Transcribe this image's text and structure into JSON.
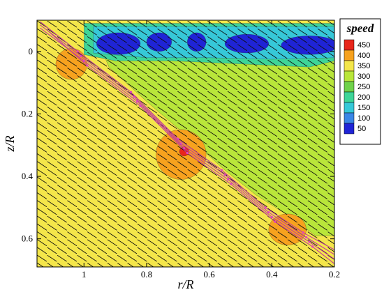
{
  "chart_data": {
    "type": "heatmap",
    "title": "",
    "xlabel": "r/R",
    "ylabel": "z/R",
    "xlim": [
      1.15,
      0.2
    ],
    "ylim": [
      0.69,
      -0.1
    ],
    "x_reversed": true,
    "y_reversed": true,
    "x_ticks": [
      1,
      0.8,
      0.6,
      0.4,
      0.2
    ],
    "x_tick_labels": [
      "1",
      "0.8",
      "0.6",
      "0.4",
      "0.2"
    ],
    "y_ticks": [
      0,
      0.2,
      0.4,
      0.6
    ],
    "y_tick_labels": [
      "0",
      "0.2",
      "0.4",
      "0.6"
    ],
    "legend": {
      "title": "speed",
      "placement": "right",
      "levels": [
        {
          "value": 450,
          "color": "#e8261b"
        },
        {
          "value": 400,
          "color": "#f7a21e"
        },
        {
          "value": 350,
          "color": "#f4e64a"
        },
        {
          "value": 300,
          "color": "#b9e63a"
        },
        {
          "value": 250,
          "color": "#6fd24a"
        },
        {
          "value": 200,
          "color": "#3ed598"
        },
        {
          "value": 150,
          "color": "#36c8d8"
        },
        {
          "value": 100,
          "color": "#3a86e6"
        },
        {
          "value": 50,
          "color": "#1f24d6"
        }
      ]
    },
    "background_level": 325,
    "features": [
      {
        "kind": "region",
        "speed": 300,
        "polygon": [
          [
            0.95,
            -0.07
          ],
          [
            0.2,
            -0.07
          ],
          [
            0.2,
            0.59
          ],
          [
            0.26,
            0.59
          ],
          [
            0.34,
            0.53
          ],
          [
            0.45,
            0.46
          ],
          [
            0.55,
            0.38
          ],
          [
            0.66,
            0.28
          ],
          [
            0.8,
            0.16
          ],
          [
            0.92,
            0.05
          ],
          [
            0.95,
            -0.02
          ]
        ]
      },
      {
        "kind": "region",
        "speed": 200,
        "polygon": [
          [
            1.0,
            -0.09
          ],
          [
            0.2,
            -0.09
          ],
          [
            0.2,
            0.03
          ],
          [
            0.28,
            0.05
          ],
          [
            0.5,
            0.04
          ],
          [
            0.72,
            0.03
          ],
          [
            0.9,
            0.03
          ],
          [
            1.0,
            0.01
          ]
        ]
      },
      {
        "kind": "region",
        "speed": 150,
        "polygon": [
          [
            0.97,
            -0.08
          ],
          [
            0.2,
            -0.08
          ],
          [
            0.2,
            0.02
          ],
          [
            0.4,
            0.025
          ],
          [
            0.6,
            0.02
          ],
          [
            0.8,
            0.02
          ],
          [
            0.97,
            0.005
          ]
        ]
      },
      {
        "kind": "blob",
        "speed": 50,
        "x": 0.89,
        "y": -0.025,
        "rx": 0.07,
        "ry": 0.035
      },
      {
        "kind": "blob",
        "speed": 50,
        "x": 0.76,
        "y": -0.03,
        "rx": 0.04,
        "ry": 0.03
      },
      {
        "kind": "blob",
        "speed": 50,
        "x": 0.64,
        "y": -0.03,
        "rx": 0.03,
        "ry": 0.03
      },
      {
        "kind": "blob",
        "speed": 50,
        "x": 0.48,
        "y": -0.025,
        "rx": 0.07,
        "ry": 0.03
      },
      {
        "kind": "blob",
        "speed": 50,
        "x": 0.28,
        "y": -0.02,
        "rx": 0.09,
        "ry": 0.03
      },
      {
        "kind": "blob",
        "speed": 400,
        "x": 0.69,
        "y": 0.33,
        "rx": 0.08,
        "ry": 0.08
      },
      {
        "kind": "blob",
        "speed": 400,
        "x": 0.35,
        "y": 0.57,
        "rx": 0.06,
        "ry": 0.05
      },
      {
        "kind": "blob",
        "speed": 400,
        "x": 1.04,
        "y": 0.04,
        "rx": 0.05,
        "ry": 0.05
      },
      {
        "kind": "blob",
        "speed": 450,
        "x": 0.68,
        "y": 0.32,
        "rx": 0.015,
        "ry": 0.015
      }
    ],
    "streamlines": [
      {
        "points": [
          [
            1.14,
            -0.095
          ],
          [
            1.02,
            0.0
          ],
          [
            0.85,
            0.13
          ],
          [
            0.7,
            0.28
          ],
          [
            0.56,
            0.38
          ],
          [
            0.42,
            0.5
          ],
          [
            0.3,
            0.58
          ],
          [
            0.2,
            0.635
          ]
        ]
      },
      {
        "points": [
          [
            1.14,
            -0.085
          ],
          [
            1.01,
            0.015
          ],
          [
            0.84,
            0.145
          ],
          [
            0.69,
            0.295
          ],
          [
            0.55,
            0.395
          ],
          [
            0.41,
            0.515
          ],
          [
            0.29,
            0.595
          ],
          [
            0.2,
            0.65
          ]
        ]
      },
      {
        "points": [
          [
            1.14,
            -0.075
          ],
          [
            1.0,
            0.03
          ],
          [
            0.83,
            0.16
          ],
          [
            0.68,
            0.31
          ],
          [
            0.54,
            0.41
          ],
          [
            0.4,
            0.53
          ],
          [
            0.28,
            0.61
          ],
          [
            0.2,
            0.665
          ]
        ]
      },
      {
        "points": [
          [
            1.12,
            -0.07
          ],
          [
            0.99,
            0.045
          ],
          [
            0.82,
            0.175
          ],
          [
            0.67,
            0.325
          ],
          [
            0.53,
            0.425
          ],
          [
            0.39,
            0.545
          ],
          [
            0.27,
            0.625
          ],
          [
            0.2,
            0.68
          ]
        ]
      }
    ],
    "vector_field": {
      "dx": 0.03,
      "dy": -0.02,
      "spacing_x": 0.032,
      "spacing_y": 0.025
    },
    "x": [
      1.15,
      0.2
    ],
    "y": [
      -0.1,
      0.69
    ]
  }
}
